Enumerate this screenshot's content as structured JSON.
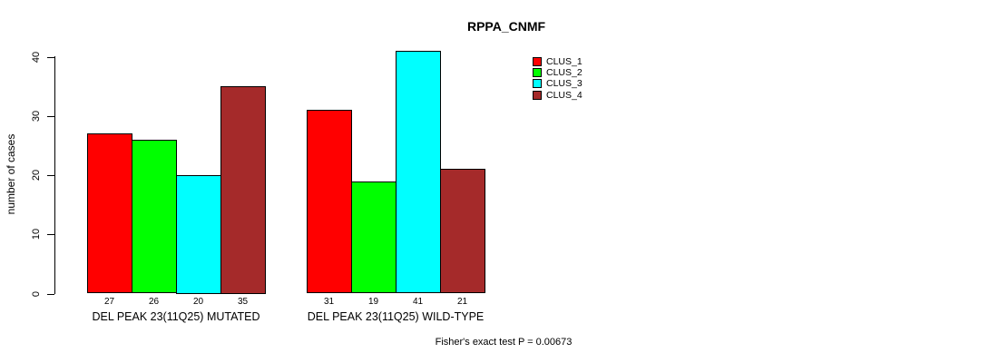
{
  "chart_data": {
    "type": "bar",
    "title": "RPPA_CNMF",
    "xlabel": "",
    "ylabel": "number of cases",
    "note": "Fisher's exact test P = 0.00673",
    "categories": [
      "DEL PEAK 23(11Q25) MUTATED",
      "DEL PEAK 23(11Q25) WILD-TYPE"
    ],
    "series": [
      {
        "name": "CLUS_1",
        "color": "#FF0000",
        "values": [
          27,
          31
        ]
      },
      {
        "name": "CLUS_2",
        "color": "#00FF00",
        "values": [
          26,
          19
        ]
      },
      {
        "name": "CLUS_3",
        "color": "#00FFFF",
        "values": [
          20,
          41
        ]
      },
      {
        "name": "CLUS_4",
        "color": "#A52A2A",
        "values": [
          35,
          21
        ]
      }
    ],
    "bar_value_labels": [
      [
        27,
        26,
        20,
        35
      ],
      [
        31,
        19,
        41,
        21
      ]
    ],
    "ylim": [
      0,
      40
    ],
    "yticks": [
      0,
      10,
      20,
      30,
      40
    ],
    "grid": false,
    "legend_position": "right-of-plot",
    "background": "#FFFFFF",
    "axis_color": "#000000"
  }
}
